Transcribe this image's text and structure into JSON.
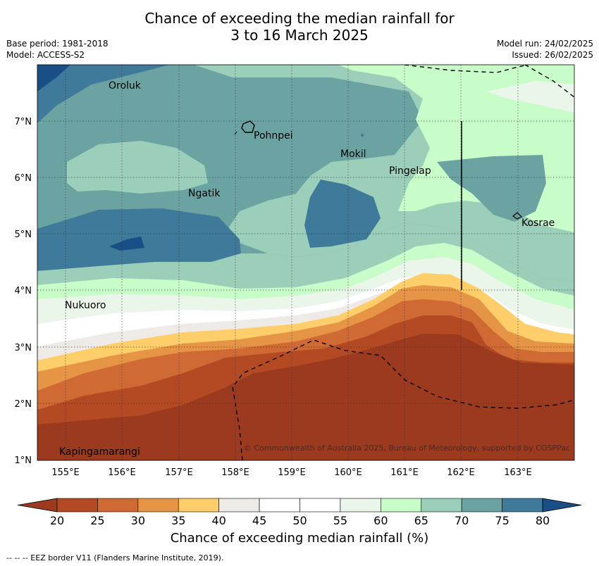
{
  "title_line1": "Chance of exceeding the median rainfall for",
  "title_line2": "3 to 16 March 2025",
  "base_period": "Base period: 1981-2018",
  "model": "Model: ACCESS-S2",
  "model_run": "Model run: 24/02/2025",
  "issued": "Issued: 26/02/2025",
  "copyright": "© Commonwealth of Australia 2025, Bureau of Meteorology, supported by COSPPac",
  "footnote": "--  --  -- EEZ border V11 (Flanders Marine Institute, 2019).",
  "colorbar": {
    "label": "Chance of exceeding median rainfall (%)",
    "ticks": [
      "20",
      "25",
      "30",
      "35",
      "40",
      "45",
      "50",
      "55",
      "60",
      "65",
      "70",
      "75",
      "80"
    ],
    "colors": [
      "#9b3a1f",
      "#b34a23",
      "#cf6a35",
      "#e69446",
      "#fece6a",
      "#eeeae6",
      "#ffffff",
      "#ffffff",
      "#e9f6e9",
      "#c8fcc8",
      "#9ccfb9",
      "#6ba3a3",
      "#3f7a9a",
      "#1a4e86"
    ]
  },
  "axes": {
    "lon_labels": [
      "155°E",
      "156°E",
      "157°E",
      "158°E",
      "159°E",
      "160°E",
      "161°E",
      "162°E",
      "163°E"
    ],
    "lat_labels": [
      "7°N",
      "6°N",
      "5°N",
      "4°N",
      "3°N",
      "2°N",
      "1°N"
    ]
  },
  "places": [
    {
      "name": "Oroluk"
    },
    {
      "name": "Pohnpei"
    },
    {
      "name": "Mokil"
    },
    {
      "name": "Pingelap"
    },
    {
      "name": "Ngatik"
    },
    {
      "name": "Kosrae"
    },
    {
      "name": "Nukuoro"
    },
    {
      "name": "Kapingamarangi"
    }
  ]
}
